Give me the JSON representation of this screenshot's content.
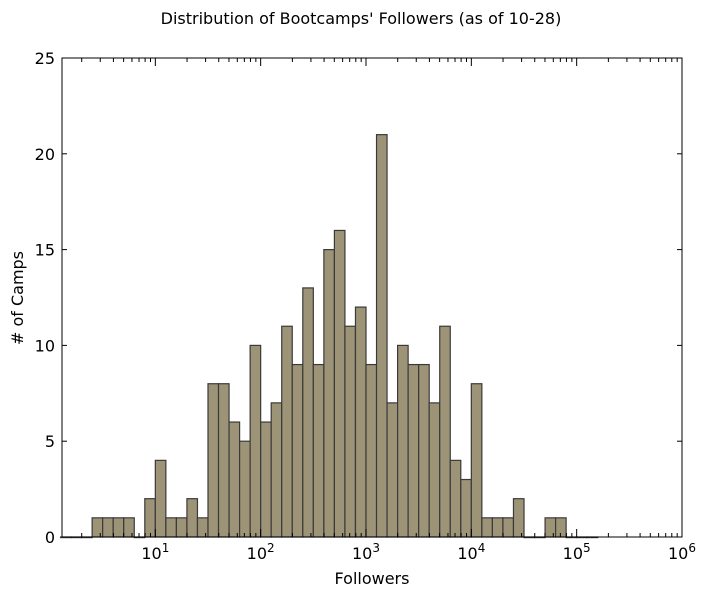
{
  "chart_data": {
    "type": "bar",
    "title": "Distribution of Bootcamps' Followers (as of 10-28)",
    "xlabel": "Followers",
    "ylabel": "# of Camps",
    "x_scale": "log",
    "xlim": [
      1.3,
      1000000
    ],
    "ylim": [
      0,
      25
    ],
    "grid": false,
    "bar_color": "#9d9377",
    "edge_color": "#3a3a3a",
    "x_ticks": [
      {
        "base": "10",
        "exp": "1",
        "value": 10
      },
      {
        "base": "10",
        "exp": "2",
        "value": 100
      },
      {
        "base": "10",
        "exp": "3",
        "value": 1000
      },
      {
        "base": "10",
        "exp": "4",
        "value": 10000
      },
      {
        "base": "10",
        "exp": "5",
        "value": 100000
      },
      {
        "base": "10",
        "exp": "6",
        "value": 1000000
      }
    ],
    "y_ticks": [
      "0",
      "5",
      "10",
      "15",
      "20",
      "25"
    ],
    "bin_log_edges": [
      0.1,
      5.2
    ],
    "values": [
      0,
      0,
      0,
      1,
      1,
      1,
      1,
      0,
      2,
      4,
      1,
      1,
      2,
      1,
      8,
      8,
      6,
      5,
      10,
      6,
      7,
      11,
      9,
      13,
      9,
      15,
      16,
      11,
      12,
      9,
      21,
      7,
      10,
      9,
      9,
      7,
      11,
      4,
      3,
      8,
      1,
      1,
      1,
      2,
      0,
      0,
      1,
      1,
      0,
      0,
      0
    ]
  }
}
